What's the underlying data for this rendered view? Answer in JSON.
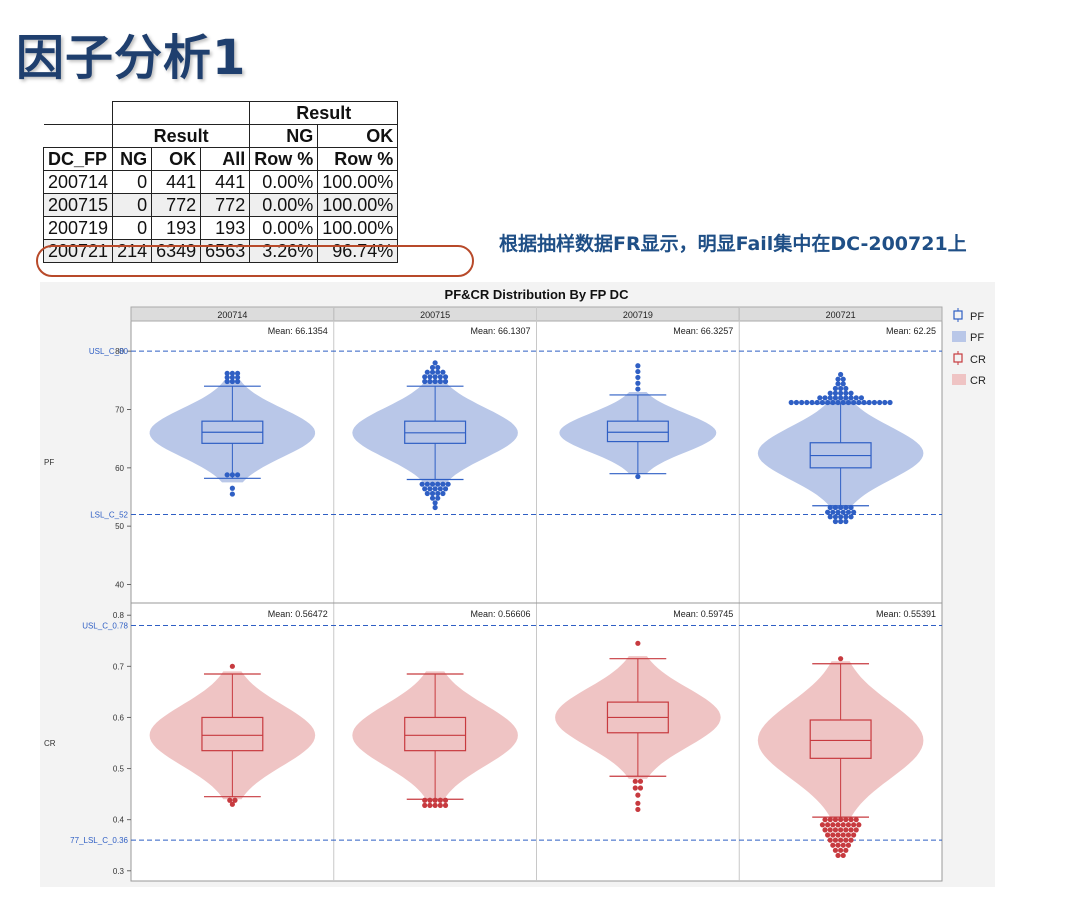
{
  "slide": {
    "title": "因子分析1",
    "annotation": "根据抽样数据FR显示，明显Fail集中在DC-200721上"
  },
  "table": {
    "group_result": "Result",
    "sub_result": "Result",
    "ng": "NG",
    "ok": "OK",
    "columns": [
      "DC_FP",
      "NG",
      "OK",
      "All",
      "Row %",
      "Row %"
    ],
    "rows": [
      [
        "200714",
        "0",
        "441",
        "441",
        "0.00%",
        "100.00%"
      ],
      [
        "200715",
        "0",
        "772",
        "772",
        "0.00%",
        "100.00%"
      ],
      [
        "200719",
        "0",
        "193",
        "193",
        "0.00%",
        "100.00%"
      ],
      [
        "200721",
        "214",
        "6349",
        "6563",
        "3.26%",
        "96.74%"
      ]
    ]
  },
  "chart_data": {
    "type": "violin-box",
    "title": "PF&CR Distribution By FP DC",
    "categories": [
      "200714",
      "200715",
      "200719",
      "200721"
    ],
    "legend": [
      "PF",
      "PF",
      "CR",
      "CR"
    ],
    "legend_placement": "right",
    "colors": {
      "pf": "#2f5fc4",
      "pf_fill": "#b9c7e8",
      "cr": "#c73a3f",
      "cr_fill": "#efc4c4",
      "spec": "#2f5fc4"
    },
    "panels": [
      {
        "name": "PF",
        "ylim": [
          37,
          85
        ],
        "yticks": [
          "40",
          "50",
          "60",
          "70",
          "80"
        ],
        "spec_lines": [
          {
            "label": "USL_C_80",
            "value": 80
          },
          {
            "label": "LSL_C_52",
            "value": 52
          }
        ],
        "means": [
          "Mean: 66.1354",
          "Mean: 66.1307",
          "Mean: 66.3257",
          "Mean: 62.25"
        ],
        "mean_values": [
          66.1354,
          66.1307,
          66.3257,
          62.25
        ],
        "groups": [
          {
            "q1": 64.2,
            "median": 66.1,
            "q3": 68.0,
            "wlo": 58.2,
            "whi": 74.0,
            "vlo": 57.5,
            "vhi": 75.0,
            "vmode": 66,
            "vwidth": 0.95,
            "outliers": [
              [
                74.8,
                3
              ],
              [
                75.5,
                3
              ],
              [
                76.2,
                3
              ],
              [
                56.5,
                1
              ],
              [
                55.5,
                1
              ],
              [
                58.8,
                3
              ]
            ]
          },
          {
            "q1": 64.2,
            "median": 66.0,
            "q3": 68.0,
            "wlo": 58.0,
            "whi": 74.0,
            "vlo": 57.0,
            "vhi": 75.0,
            "vmode": 66,
            "vwidth": 0.95,
            "outliers": [
              [
                74.8,
                5
              ],
              [
                75.6,
                5
              ],
              [
                76.4,
                4
              ],
              [
                77.2,
                2
              ],
              [
                78.0,
                1
              ],
              [
                57.2,
                6
              ],
              [
                56.4,
                5
              ],
              [
                55.6,
                4
              ],
              [
                54.8,
                2
              ],
              [
                54.0,
                1
              ],
              [
                53.2,
                1
              ]
            ]
          },
          {
            "q1": 64.5,
            "median": 66.1,
            "q3": 68.0,
            "wlo": 59.0,
            "whi": 72.5,
            "vlo": 59.0,
            "vhi": 73.0,
            "vmode": 66,
            "vwidth": 0.9,
            "outliers": [
              [
                73.5,
                1
              ],
              [
                74.5,
                1
              ],
              [
                75.5,
                1
              ],
              [
                76.5,
                1
              ],
              [
                77.5,
                1
              ],
              [
                58.5,
                1
              ]
            ]
          },
          {
            "q1": 60.0,
            "median": 62.1,
            "q3": 64.3,
            "wlo": 53.5,
            "whi": 71.0,
            "vlo": 53.0,
            "vhi": 72.0,
            "vmode": 62.5,
            "vwidth": 0.95,
            "outliers": [
              [
                71.2,
                20
              ],
              [
                72.0,
                9
              ],
              [
                72.8,
                5
              ],
              [
                73.6,
                3
              ],
              [
                74.4,
                2
              ],
              [
                75.2,
                2
              ],
              [
                76.0,
                1
              ],
              [
                53.2,
                5
              ],
              [
                52.4,
                6
              ],
              [
                51.6,
                5
              ],
              [
                50.8,
                3
              ]
            ]
          }
        ]
      },
      {
        "name": "CR",
        "ylim": [
          0.28,
          0.82
        ],
        "yticks": [
          "0.3",
          "0.4",
          "0.5",
          "0.6",
          "0.7",
          "0.8"
        ],
        "spec_lines": [
          {
            "label": "USL_C_0.78",
            "value": 0.78
          },
          {
            "label": "77_LSL_C_0.36",
            "value": 0.36
          }
        ],
        "means": [
          "Mean: 0.56472",
          "Mean: 0.56606",
          "Mean: 0.59745",
          "Mean: 0.55391"
        ],
        "mean_values": [
          0.56472,
          0.56606,
          0.59745,
          0.55391
        ],
        "groups": [
          {
            "q1": 0.535,
            "median": 0.565,
            "q3": 0.6,
            "wlo": 0.445,
            "whi": 0.685,
            "vlo": 0.44,
            "vhi": 0.69,
            "vmode": 0.565,
            "vwidth": 0.95,
            "outliers": [
              [
                0.7,
                1
              ],
              [
                0.438,
                2
              ],
              [
                0.43,
                1
              ]
            ]
          },
          {
            "q1": 0.535,
            "median": 0.565,
            "q3": 0.6,
            "wlo": 0.44,
            "whi": 0.685,
            "vlo": 0.44,
            "vhi": 0.69,
            "vmode": 0.565,
            "vwidth": 0.95,
            "outliers": [
              [
                0.438,
                5
              ],
              [
                0.428,
                5
              ]
            ]
          },
          {
            "q1": 0.57,
            "median": 0.6,
            "q3": 0.63,
            "wlo": 0.485,
            "whi": 0.715,
            "vlo": 0.48,
            "vhi": 0.72,
            "vmode": 0.6,
            "vwidth": 0.95,
            "outliers": [
              [
                0.745,
                1
              ],
              [
                0.475,
                2
              ],
              [
                0.462,
                2
              ],
              [
                0.448,
                1
              ],
              [
                0.432,
                1
              ],
              [
                0.42,
                1
              ]
            ]
          },
          {
            "q1": 0.52,
            "median": 0.555,
            "q3": 0.595,
            "wlo": 0.405,
            "whi": 0.705,
            "vlo": 0.4,
            "vhi": 0.71,
            "vmode": 0.555,
            "vwidth": 0.95,
            "outliers": [
              [
                0.715,
                1
              ],
              [
                0.4,
                7
              ],
              [
                0.39,
                8
              ],
              [
                0.38,
                7
              ],
              [
                0.37,
                6
              ],
              [
                0.36,
                5
              ],
              [
                0.35,
                4
              ],
              [
                0.34,
                3
              ],
              [
                0.33,
                2
              ]
            ]
          }
        ]
      }
    ]
  }
}
